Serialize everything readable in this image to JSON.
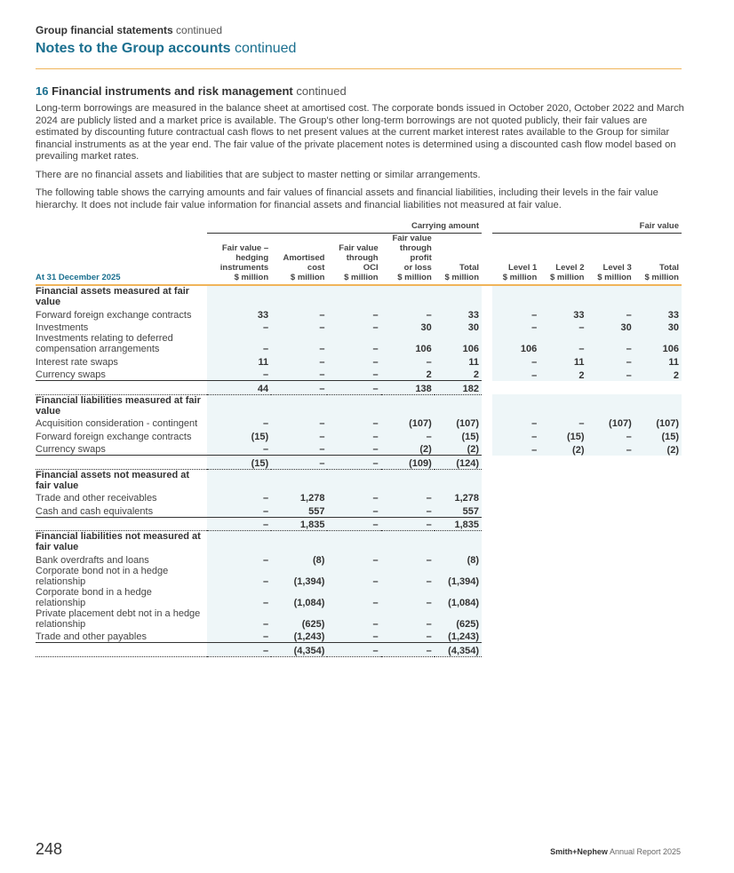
{
  "header": {
    "kicker": "Group financial statements",
    "kicker_suffix": "continued",
    "title": "Notes to the Group accounts",
    "title_suffix": "continued"
  },
  "section": {
    "number": "16",
    "title": "Financial instruments and risk management",
    "suffix": "continued"
  },
  "paragraphs": [
    "Long-term borrowings are measured in the balance sheet at amortised cost. The corporate bonds issued in October 2020, October 2022 and March 2024 are publicly listed and a market price is available. The Group's other long-term borrowings are not quoted publicly, their fair values are estimated by discounting future contractual cash flows to net present values at the current market interest rates available to the Group for similar financial instruments as at the year end. The fair value of the private placement notes is determined using a discounted cash flow model based on prevailing market rates.",
    "There are no financial assets and liabilities that are subject to master netting or similar arrangements.",
    "The following table shows the carrying amounts and fair values of financial assets and financial liabilities, including their levels in the fair value hierarchy. It does not include fair value information for financial assets and financial liabilities not measured at fair value."
  ],
  "table": {
    "group_headers": [
      "Carrying amount",
      "Fair value"
    ],
    "date_label": "At 31 December 2025",
    "columns": [
      "Fair value –\nhedging\ninstruments\n$ million",
      "Amortised\ncost\n$ million",
      "Fair value\nthrough\nOCI\n$ million",
      "Fair value\nthrough\nprofit\nor loss\n$ million",
      "Total\n$ million",
      "Level 1\n$ million",
      "Level 2\n$ million",
      "Level 3\n$ million",
      "Total\n$ million"
    ],
    "rows": [
      {
        "type": "head",
        "label": "Financial assets measured at fair value",
        "fv": true,
        "values": []
      },
      {
        "label": "Forward foreign exchange contracts",
        "fv": true,
        "values": [
          "33",
          "–",
          "–",
          "–",
          "33",
          "–",
          "33",
          "–",
          "33"
        ]
      },
      {
        "label": "Investments",
        "fv": true,
        "values": [
          "–",
          "–",
          "–",
          "30",
          "30",
          "–",
          "–",
          "30",
          "30"
        ]
      },
      {
        "label": "Investments relating to deferred compensation arrangements",
        "fv": true,
        "values": [
          "–",
          "–",
          "–",
          "106",
          "106",
          "106",
          "–",
          "–",
          "106"
        ]
      },
      {
        "label": "Interest rate swaps",
        "fv": true,
        "values": [
          "11",
          "–",
          "–",
          "–",
          "11",
          "–",
          "11",
          "–",
          "11"
        ]
      },
      {
        "type": "last",
        "label": "Currency swaps",
        "fv": true,
        "values": [
          "–",
          "–",
          "–",
          "2",
          "2",
          "–",
          "2",
          "–",
          "2"
        ]
      },
      {
        "type": "total",
        "label": "",
        "fv": true,
        "values": [
          "44",
          "–",
          "–",
          "138",
          "182"
        ]
      },
      {
        "type": "head",
        "label": "Financial liabilities measured at fair value",
        "fv": true,
        "values": []
      },
      {
        "label": "Acquisition consideration - contingent",
        "fv": true,
        "values": [
          "–",
          "–",
          "–",
          "(107)",
          "(107)",
          "–",
          "–",
          "(107)",
          "(107)"
        ]
      },
      {
        "label": "Forward foreign exchange contracts",
        "fv": true,
        "values": [
          "(15)",
          "–",
          "–",
          "–",
          "(15)",
          "–",
          "(15)",
          "–",
          "(15)"
        ]
      },
      {
        "type": "last",
        "label": "Currency swaps",
        "fv": true,
        "values": [
          "–",
          "–",
          "–",
          "(2)",
          "(2)",
          "–",
          "(2)",
          "–",
          "(2)"
        ]
      },
      {
        "type": "total",
        "label": "",
        "fv": false,
        "values": [
          "(15)",
          "–",
          "–",
          "(109)",
          "(124)"
        ]
      },
      {
        "type": "head",
        "label": "Financial assets not measured at fair value",
        "fv": false,
        "values": []
      },
      {
        "label": "Trade and other receivables",
        "fv": false,
        "values": [
          "–",
          "1,278",
          "–",
          "–",
          "1,278"
        ]
      },
      {
        "type": "last",
        "label": "Cash and cash equivalents",
        "fv": false,
        "values": [
          "–",
          "557",
          "–",
          "–",
          "557"
        ]
      },
      {
        "type": "total",
        "label": "",
        "fv": false,
        "values": [
          "–",
          "1,835",
          "–",
          "–",
          "1,835"
        ]
      },
      {
        "type": "head",
        "label": "Financial liabilities not measured at fair value",
        "fv": false,
        "values": []
      },
      {
        "label": "Bank overdrafts and loans",
        "fv": false,
        "values": [
          "–",
          "(8)",
          "–",
          "–",
          "(8)"
        ]
      },
      {
        "label": "Corporate bond not in a hedge relationship",
        "fv": false,
        "values": [
          "–",
          "(1,394)",
          "–",
          "–",
          "(1,394)"
        ]
      },
      {
        "label": "Corporate bond in a hedge relationship",
        "fv": false,
        "values": [
          "–",
          "(1,084)",
          "–",
          "–",
          "(1,084)"
        ]
      },
      {
        "label": "Private placement debt not in a hedge relationship",
        "fv": false,
        "values": [
          "–",
          "(625)",
          "–",
          "–",
          "(625)"
        ]
      },
      {
        "type": "last",
        "label": "Trade and other payables",
        "fv": false,
        "values": [
          "–",
          "(1,243)",
          "–",
          "–",
          "(1,243)"
        ]
      },
      {
        "type": "total",
        "label": "",
        "fv": false,
        "values": [
          "–",
          "(4,354)",
          "–",
          "–",
          "(4,354)"
        ]
      }
    ]
  },
  "footer": {
    "page": "248",
    "brand": "Smith+Nephew",
    "report": "Annual Report 2025"
  }
}
